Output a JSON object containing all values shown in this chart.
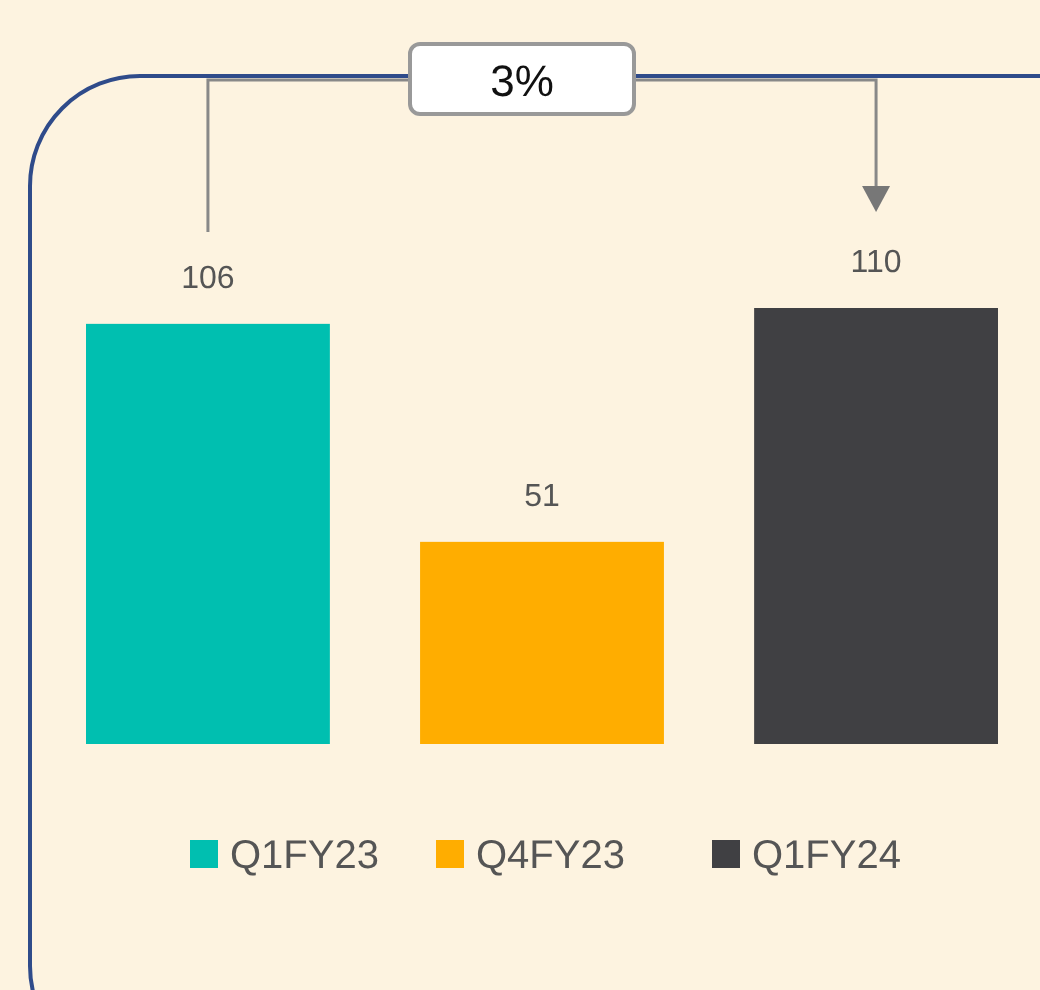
{
  "chart_data": {
    "type": "bar",
    "categories": [
      null
    ],
    "series": [
      {
        "name": "Q1FY23",
        "color": "#00bfb0",
        "values": [
          106
        ]
      },
      {
        "name": "Q4FY23",
        "color": "#ffad00",
        "values": [
          51
        ]
      },
      {
        "name": "Q1FY24",
        "color": "#404043",
        "values": [
          110
        ]
      }
    ],
    "data_labels": true,
    "legend": "bottom",
    "annotations": [
      "3%"
    ]
  }
}
